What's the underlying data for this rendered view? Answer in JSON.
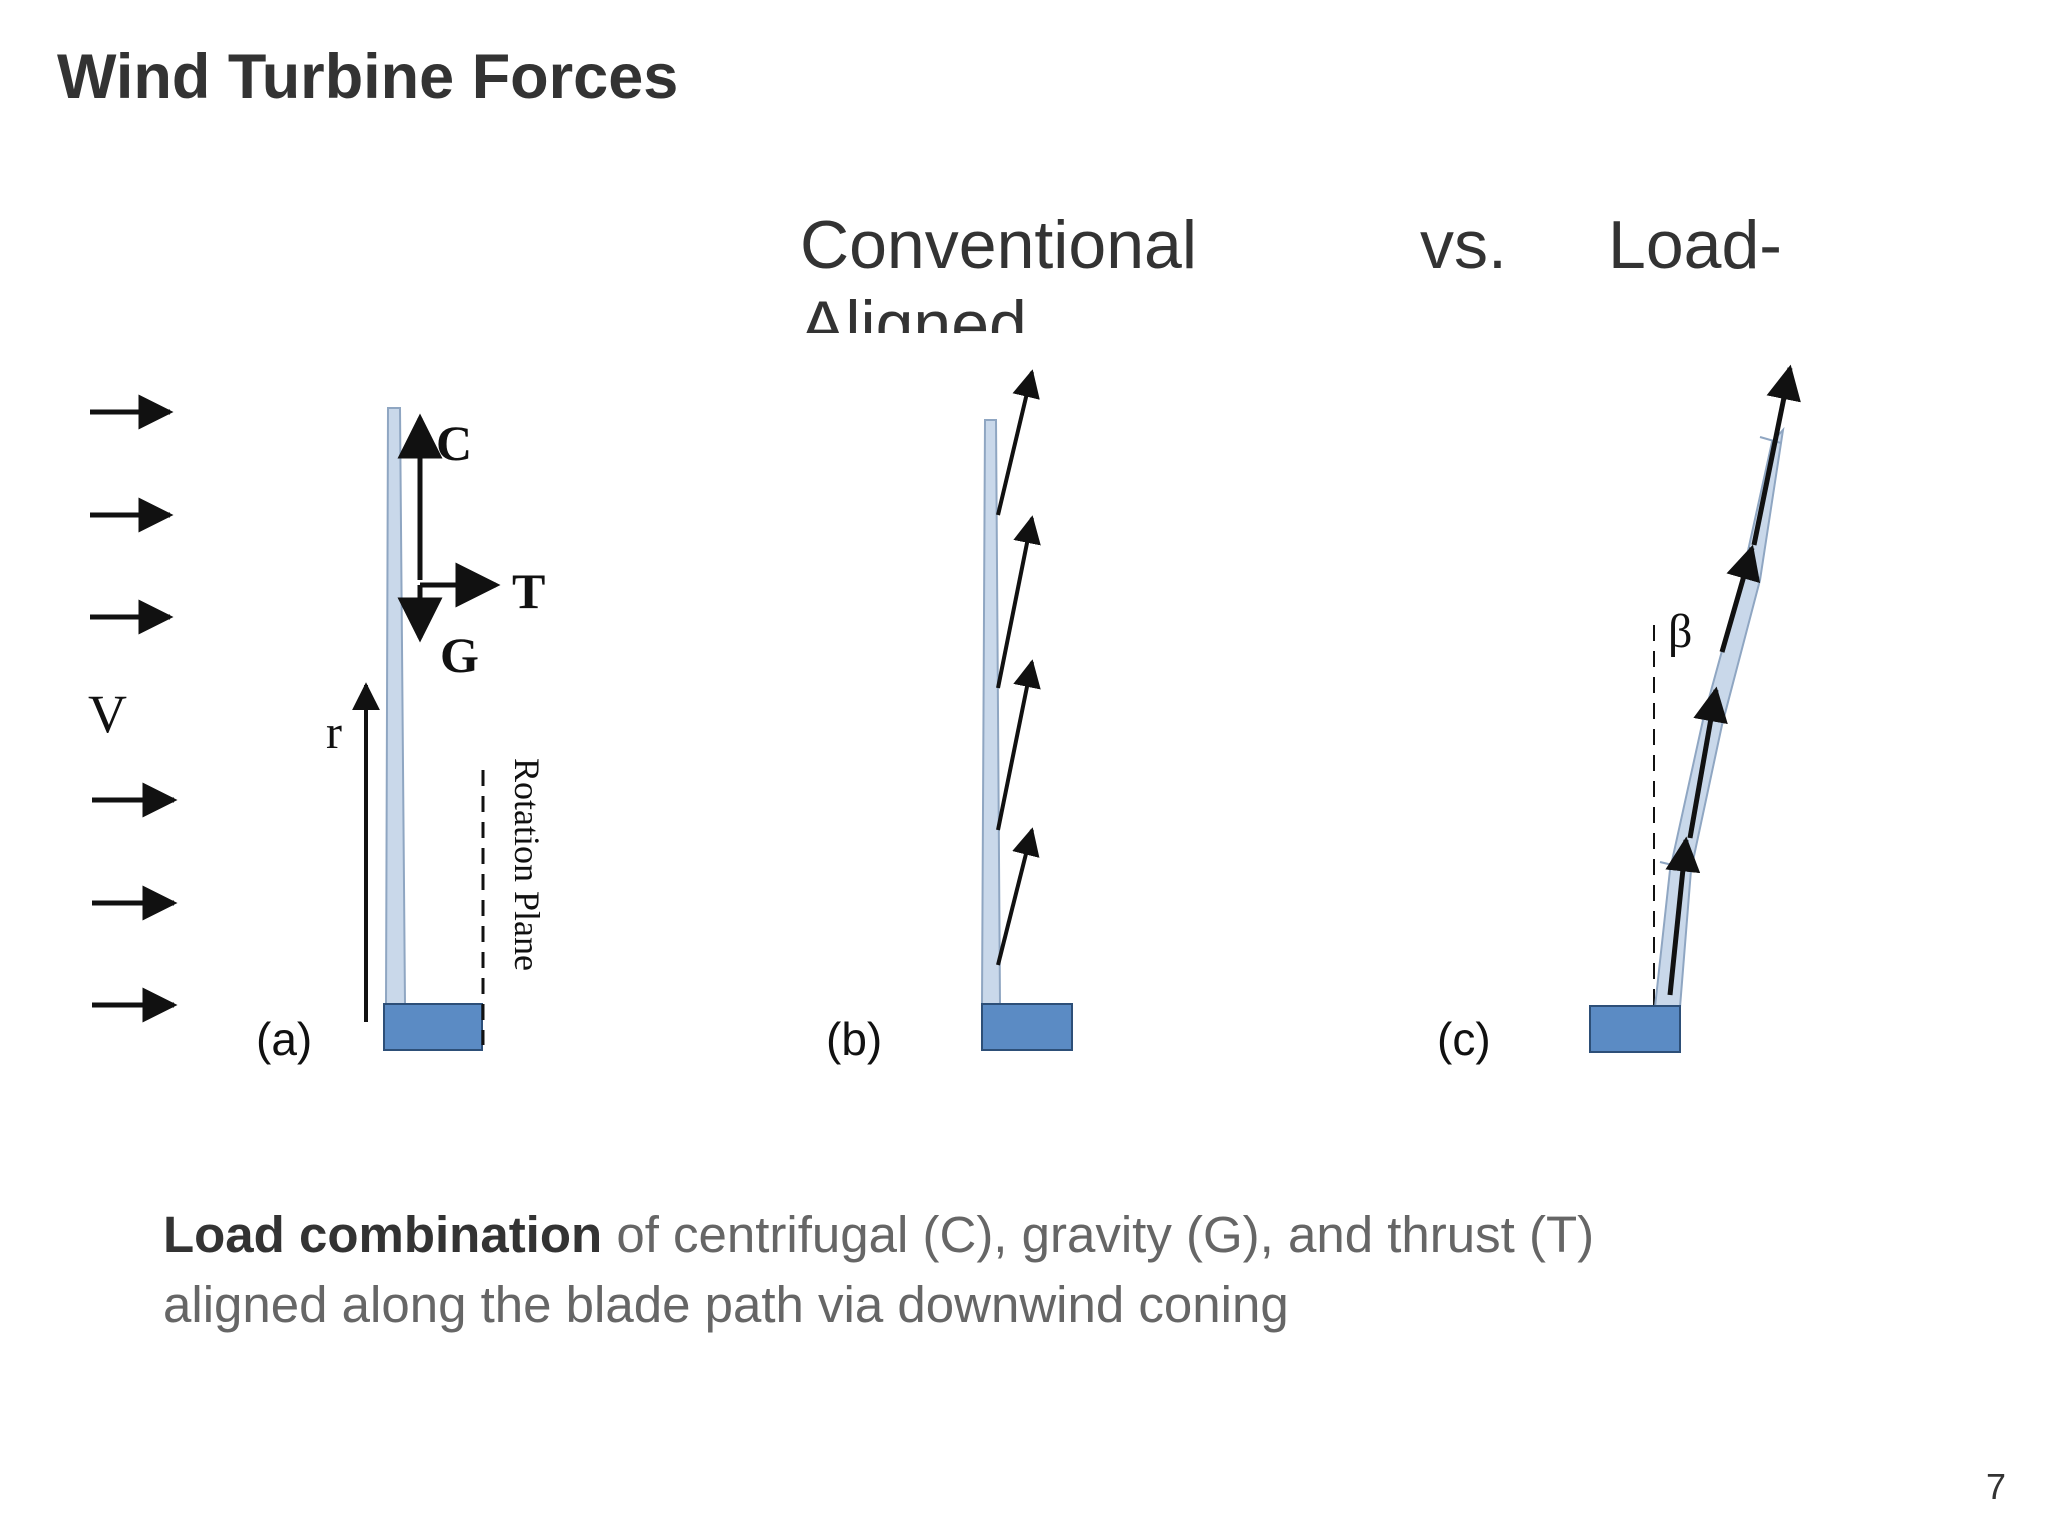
{
  "slide": {
    "title": "Wind Turbine Forces",
    "subtitle": {
      "left": "Conventional",
      "middle": "vs.",
      "right": "Load-",
      "overflow": "Aligned"
    },
    "page_number": "7"
  },
  "diagram": {
    "panel_a": {
      "label": "(a)",
      "wind_label": "V",
      "radius_label": "r",
      "force_centrifugal": "C",
      "force_thrust": "T",
      "force_gravity": "G",
      "rotation_plane_label": "Rotation Plane"
    },
    "panel_b": {
      "label": "(b)"
    },
    "panel_c": {
      "label": "(c)",
      "cone_angle_label": "β"
    },
    "colors": {
      "blade": "#c9d8ea",
      "blade_edge": "#8fa6c2",
      "hub": "#5b8bc4",
      "hub_edge": "#2d4f78",
      "ink": "#111111"
    }
  },
  "caption": {
    "bold": "Load combination",
    "line1_rest": " of centrifugal (C), gravity (G), and thrust (T)",
    "line2": "aligned along the blade path via downwind coning"
  }
}
